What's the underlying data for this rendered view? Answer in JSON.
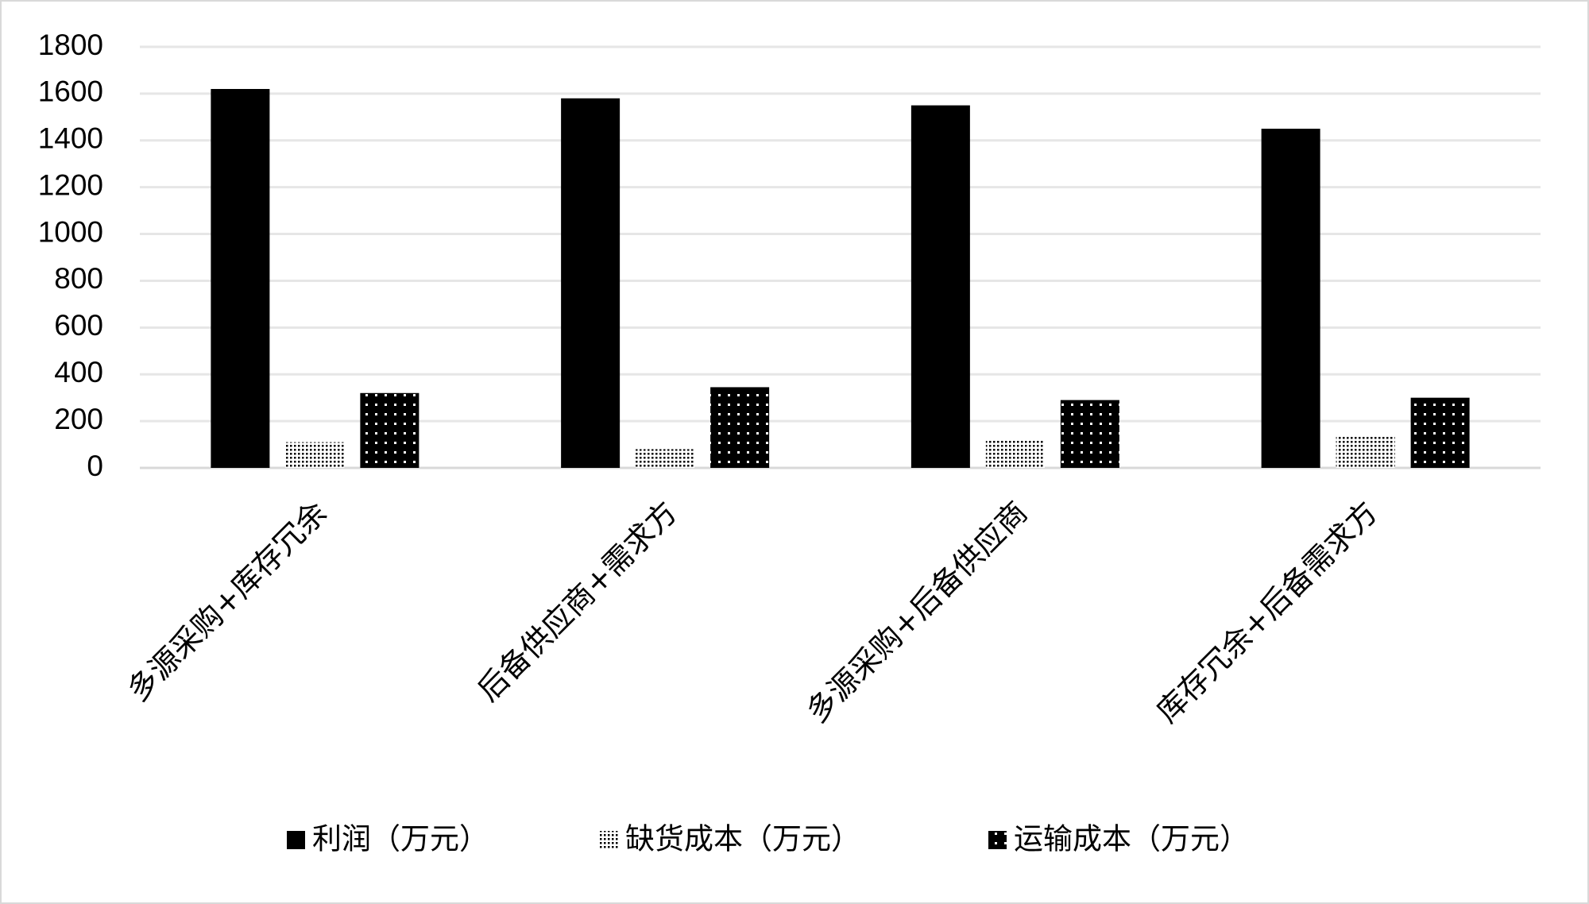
{
  "chart_data": {
    "type": "bar",
    "categories": [
      "多源采购+库存冗余",
      "后备供应商+需求方",
      "多源采购+后备供应商",
      "库存冗余+后备需求方"
    ],
    "series": [
      {
        "name": "利润（万元）",
        "color": "#000000",
        "pattern": "solid",
        "values": [
          1620,
          1580,
          1550,
          1450
        ]
      },
      {
        "name": "缺货成本（万元）",
        "color": "#000000",
        "pattern": "fine-dots",
        "values": [
          110,
          80,
          120,
          140
        ]
      },
      {
        "name": "运输成本（万元）",
        "color": "#000000",
        "pattern": "white-dots",
        "values": [
          320,
          345,
          290,
          300
        ]
      }
    ],
    "ylim": [
      0,
      1800
    ],
    "yticks": [
      0,
      200,
      400,
      600,
      800,
      1000,
      1200,
      1400,
      1600,
      1800
    ],
    "grid": true,
    "legend": "bottom"
  }
}
